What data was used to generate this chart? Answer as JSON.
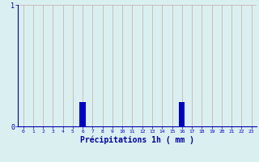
{
  "hours": [
    0,
    1,
    2,
    3,
    4,
    5,
    6,
    7,
    8,
    9,
    10,
    11,
    12,
    13,
    14,
    15,
    16,
    17,
    18,
    19,
    20,
    21,
    22,
    23
  ],
  "values": [
    0,
    0,
    0,
    0,
    0,
    0,
    0.2,
    0,
    0,
    0,
    0,
    0,
    0,
    0,
    0,
    0,
    0.2,
    0,
    0,
    0,
    0,
    0,
    0,
    0
  ],
  "bar_color": "#0000cc",
  "background_color": "#daf0f0",
  "grid_color": "#c8a8a8",
  "axis_color": "#0000aa",
  "tick_color": "#0000cc",
  "xlabel": "Précipitations 1h ( mm )",
  "ylim": [
    0,
    1.0
  ],
  "xlim": [
    -0.5,
    23.5
  ],
  "yticks": [
    0,
    1
  ],
  "xticks": [
    0,
    1,
    2,
    3,
    4,
    5,
    6,
    7,
    8,
    9,
    10,
    11,
    12,
    13,
    14,
    15,
    16,
    17,
    18,
    19,
    20,
    21,
    22,
    23
  ]
}
